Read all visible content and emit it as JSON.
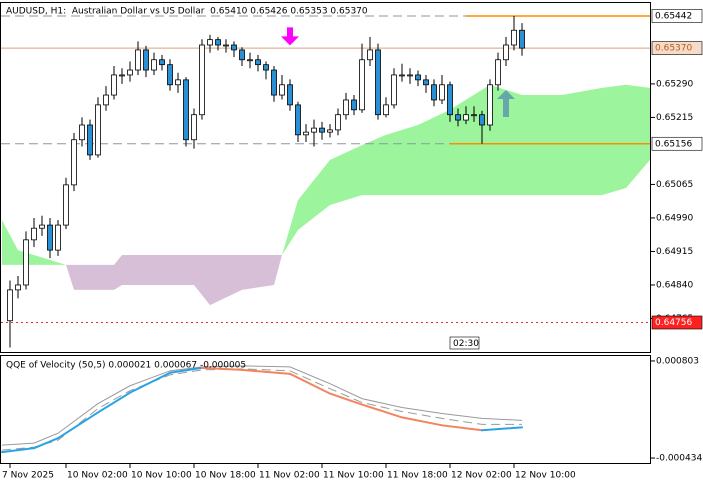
{
  "chart_data": [
    {
      "type": "candlestick",
      "title": "AUDUSD, H1:  Australian Dollar vs US Dollar  0.65410 0.65426 0.65353 0.65370",
      "categories": [
        "7 Nov 2025",
        null,
        null,
        null,
        null,
        null,
        null,
        "10 Nov 02:00",
        null,
        null,
        null,
        null,
        null,
        null,
        null,
        "10 Nov 10:00",
        null,
        null,
        null,
        null,
        null,
        null,
        null,
        "10 Nov 18:00",
        null,
        null,
        null,
        null,
        null,
        null,
        null,
        "11 Nov 02:00",
        null,
        null,
        null,
        null,
        null,
        null,
        null,
        "11 Nov 10:00",
        null,
        null,
        null,
        null,
        null,
        null,
        null,
        "11 Nov 18:00",
        null,
        null,
        null,
        null,
        null,
        null,
        null,
        "12 Nov 02:00",
        null,
        null,
        null,
        null,
        null,
        null,
        null,
        "12 Nov 10:00",
        null
      ],
      "open": [
        0.6476,
        0.64829,
        0.6484,
        0.64941,
        0.64967,
        0.64974,
        0.64918,
        0.64974,
        0.65064,
        0.65165,
        0.65198,
        0.65131,
        0.65243,
        0.65265,
        0.6531,
        0.6531,
        0.65321,
        0.65366,
        0.65321,
        0.65344,
        0.65333,
        0.65288,
        0.65299,
        0.65165,
        0.65221,
        0.65377,
        0.65389,
        0.65377,
        0.65377,
        0.65366,
        0.65344,
        0.65344,
        0.65333,
        0.65321,
        0.65265,
        0.65288,
        0.65243,
        0.65176,
        0.65182,
        0.65191,
        0.65182,
        0.65187,
        0.65221,
        0.65254,
        0.65232,
        0.65344,
        0.65366,
        0.65221,
        0.65243,
        0.6531,
        0.6531,
        0.6531,
        0.65299,
        0.65288,
        0.65254,
        0.65288,
        0.65221,
        0.65209,
        0.65221,
        0.65221,
        0.65198,
        0.65288,
        0.65344,
        0.65377,
        0.6541
      ],
      "high": [
        0.6485,
        0.6486,
        0.6496,
        0.6499,
        0.64995,
        0.6499,
        0.64985,
        0.6508,
        0.6518,
        0.65215,
        0.6521,
        0.6526,
        0.65285,
        0.6533,
        0.65325,
        0.6534,
        0.65385,
        0.65375,
        0.6536,
        0.65355,
        0.65345,
        0.65315,
        0.65305,
        0.65235,
        0.6539,
        0.654,
        0.65395,
        0.6539,
        0.65385,
        0.65372,
        0.6536,
        0.65355,
        0.6534,
        0.6533,
        0.6531,
        0.653,
        0.6525,
        0.652,
        0.6521,
        0.65205,
        0.652,
        0.65235,
        0.6527,
        0.65265,
        0.6538,
        0.65395,
        0.6538,
        0.6526,
        0.65325,
        0.65335,
        0.65325,
        0.6532,
        0.6531,
        0.653,
        0.6531,
        0.65295,
        0.65235,
        0.6524,
        0.6524,
        0.6523,
        0.653,
        0.6536,
        0.65395,
        0.65442,
        0.65426
      ],
      "low": [
        0.647,
        0.6481,
        0.6483,
        0.64925,
        0.6495,
        0.649,
        0.64905,
        0.64965,
        0.6505,
        0.6515,
        0.6512,
        0.65125,
        0.6523,
        0.65255,
        0.6529,
        0.65295,
        0.6531,
        0.65305,
        0.6531,
        0.6532,
        0.65275,
        0.6527,
        0.6515,
        0.65145,
        0.6521,
        0.6536,
        0.65365,
        0.6536,
        0.6535,
        0.6533,
        0.65325,
        0.65318,
        0.653,
        0.6525,
        0.65255,
        0.6523,
        0.6516,
        0.6516,
        0.6515,
        0.65165,
        0.6517,
        0.65175,
        0.6521,
        0.6522,
        0.65225,
        0.6533,
        0.6521,
        0.65215,
        0.65235,
        0.65295,
        0.6529,
        0.65285,
        0.6527,
        0.6524,
        0.65245,
        0.65205,
        0.65195,
        0.652,
        0.65205,
        0.65156,
        0.65185,
        0.65275,
        0.6533,
        0.65365,
        0.65353
      ],
      "close": [
        0.64829,
        0.6484,
        0.64941,
        0.64967,
        0.64974,
        0.64918,
        0.64974,
        0.65064,
        0.65165,
        0.65198,
        0.65131,
        0.65243,
        0.65265,
        0.6531,
        0.6531,
        0.65321,
        0.65366,
        0.65321,
        0.65344,
        0.65333,
        0.65288,
        0.65299,
        0.65165,
        0.65221,
        0.65377,
        0.65389,
        0.65377,
        0.65377,
        0.65366,
        0.65344,
        0.65344,
        0.65333,
        0.65321,
        0.65265,
        0.65288,
        0.65243,
        0.65176,
        0.65182,
        0.65191,
        0.65182,
        0.65187,
        0.65221,
        0.65254,
        0.65232,
        0.65344,
        0.65366,
        0.65221,
        0.65243,
        0.6531,
        0.6531,
        0.6531,
        0.65299,
        0.65288,
        0.65254,
        0.65288,
        0.65221,
        0.65209,
        0.65221,
        0.65221,
        0.65198,
        0.65288,
        0.65344,
        0.65377,
        0.6541,
        0.6537
      ],
      "up_color": "#ffffff",
      "down_color": "#2b8fd6",
      "ylim": [
        0.6469,
        0.65471
      ],
      "yticks": [
        {
          "value": 0.6529,
          "label": "0.65290"
        },
        {
          "value": 0.65215,
          "label": "0.65215"
        },
        {
          "value": 0.65065,
          "label": "0.65065"
        },
        {
          "value": 0.6499,
          "label": "0.64990"
        },
        {
          "value": 0.64915,
          "label": "0.64915"
        },
        {
          "value": 0.6484,
          "label": "0.64840"
        },
        {
          "value": 0.64765,
          "label": "0.64765"
        }
      ],
      "levels": [
        {
          "value": 0.65442,
          "label": "0.65442",
          "label_fill": "#ffffff",
          "label_color": "#000000",
          "lines": [
            {
              "color": "#8a98a6",
              "dash": "dashed",
              "to": 57
            },
            {
              "color": "#ff8c00",
              "dash": "solid",
              "from": 57
            }
          ]
        },
        {
          "value": 0.6537,
          "label": "0.65370",
          "label_fill": "#f6dcc8",
          "label_color": "#b85a20",
          "lines": [
            {
              "color": "#d9a27e",
              "dash": "solid"
            }
          ]
        },
        {
          "value": 0.65156,
          "label": "0.65156",
          "label_fill": "#ffffff",
          "label_color": "#000000",
          "lines": [
            {
              "color": "#8a98a6",
              "dash": "dashed"
            },
            {
              "color": "#ff8c00",
              "dash": "solid",
              "from": 55
            }
          ]
        },
        {
          "value": 0.64756,
          "label": "0.64756",
          "label_fill": "#ff2020",
          "label_color": "#ffffff",
          "lines": [
            {
              "color": "#e03030",
              "dash": "dotted"
            }
          ]
        }
      ],
      "cloud": {
        "x": [
          -1,
          1,
          7,
          8,
          13,
          14,
          23,
          25,
          29,
          33,
          34,
          36,
          40,
          44,
          47,
          51,
          55,
          60,
          64,
          69,
          74,
          77,
          80
        ],
        "span_a": [
          0.64985,
          0.64918,
          0.64885,
          0.64829,
          0.64829,
          0.6484,
          0.6484,
          0.64795,
          0.64829,
          0.6484,
          0.64907,
          0.6503,
          0.6512,
          0.65153,
          0.65176,
          0.65198,
          0.65232,
          0.65288,
          0.65265,
          0.65265,
          0.65281,
          0.65288,
          0.65281
        ],
        "span_b": [
          0.64885,
          0.64885,
          0.64885,
          0.64885,
          0.64885,
          0.64907,
          0.64907,
          0.64907,
          0.64907,
          0.64907,
          0.64907,
          0.64963,
          0.65019,
          0.65041,
          0.65041,
          0.65041,
          0.65041,
          0.65041,
          0.65041,
          0.65041,
          0.65041,
          0.65057,
          0.6512
        ],
        "up_color": "#9cf59c",
        "down_color": "#d8bfd8"
      },
      "arrows": [
        {
          "direction": "down",
          "index": 35,
          "color": "#ff00ff"
        },
        {
          "direction": "up",
          "index": 62,
          "color": "#66a7a7"
        }
      ],
      "timer": "02:30"
    },
    {
      "type": "line",
      "title": "QQE of Velocity (50,5) 0.000021 0.000067 -0.000005",
      "x": [
        -1,
        3,
        6,
        11,
        15,
        20,
        24,
        29,
        35,
        40,
        44,
        49,
        54,
        59,
        64
      ],
      "series": [
        {
          "color": "#9a9a9a",
          "dash": "solid",
          "values": [
            -0.00027,
            -0.000244,
            -0.000118,
            0.00026,
            0.000487,
            0.000677,
            0.000727,
            0.00074,
            0.000727,
            0.000513,
            0.000323,
            0.00021,
            0.000134,
            7.1e-05,
            4.6e-05
          ]
        },
        {
          "color": "#9a9a9a",
          "dash": "dashed",
          "values": [
            -0.000333,
            -0.000295,
            -0.000207,
            0.000197,
            0.000424,
            0.000626,
            0.000689,
            0.000702,
            0.000677,
            0.00045,
            0.000273,
            0.000159,
            7.1e-05,
            -5e-06,
            -5e-06
          ]
        },
        {
          "color": "#29a3e6",
          "down_color": "#f4845f",
          "dash": "solid",
          "values": [
            -0.000358,
            -0.000308,
            -0.000181,
            0.000147,
            0.000399,
            0.000652,
            0.000715,
            0.000689,
            0.000639,
            0.000387,
            0.000248,
            8.4e-05,
            -1.7e-05,
            -8e-05,
            -4.3e-05
          ]
        }
      ],
      "ylim": [
        -0.000497,
        0.000866
      ],
      "yticks": [
        0.000803,
        -0.000434
      ]
    }
  ]
}
